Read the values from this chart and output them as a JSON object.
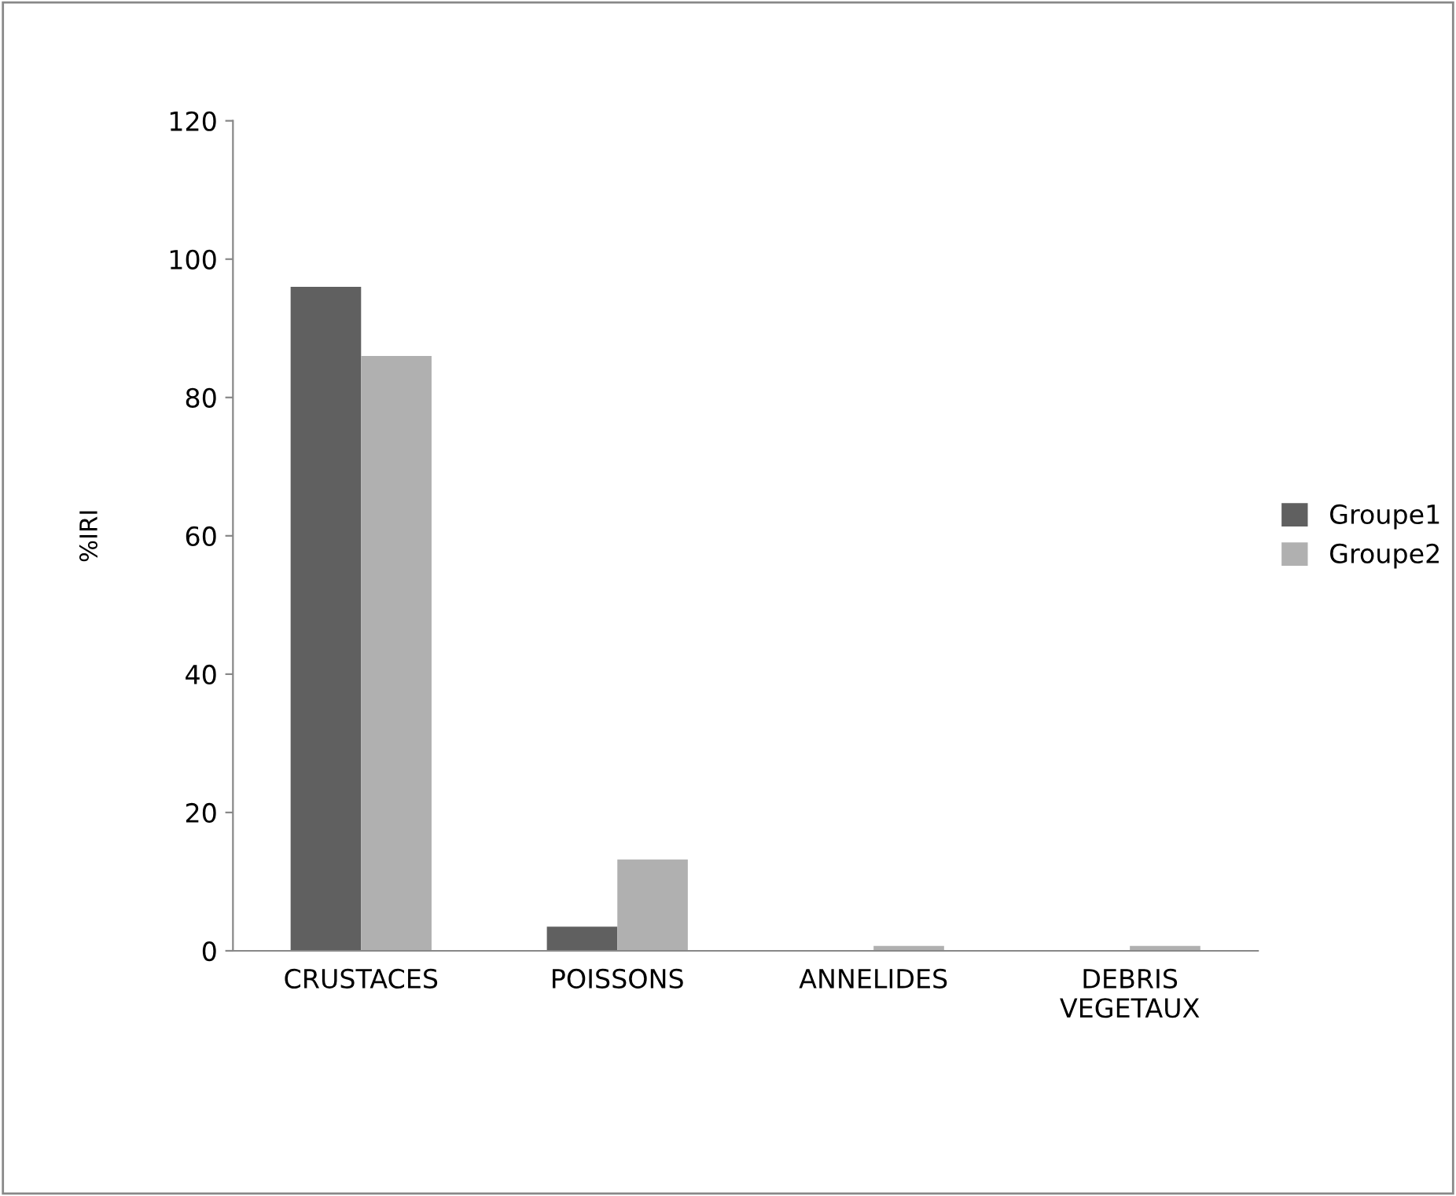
{
  "chart_data": {
    "type": "bar",
    "ylabel": "%IRI",
    "categories": [
      "CRUSTACES",
      "POISSONS",
      "ANNELIDES",
      "DEBRIS\nVEGETAUX"
    ],
    "series": [
      {
        "name": "Groupe1",
        "color": "#606060",
        "values": [
          96,
          3.5,
          0,
          0
        ]
      },
      {
        "name": "Groupe2",
        "color": "#b0b0b0",
        "values": [
          86,
          13.2,
          0.7,
          0.7
        ]
      }
    ],
    "ylim": [
      0,
      120
    ],
    "yticks": [
      0,
      20,
      40,
      60,
      80,
      100,
      120
    ],
    "grid": false,
    "legend": "right"
  }
}
